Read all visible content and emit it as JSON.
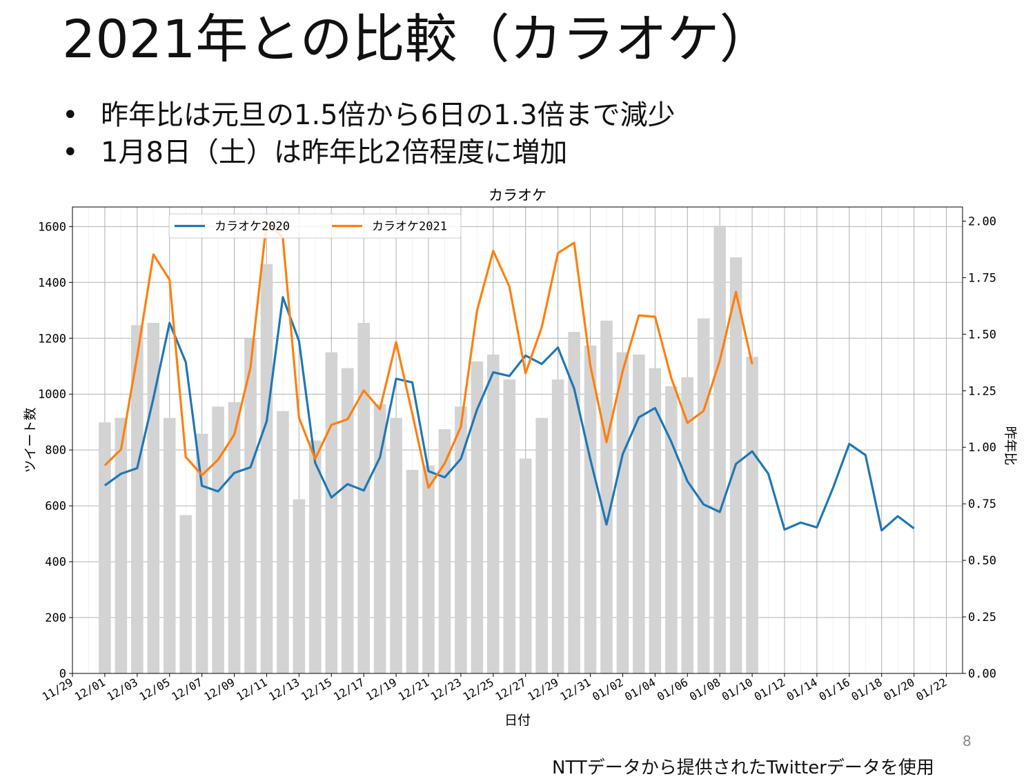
{
  "slide": {
    "title": "2021年との比較（カラオケ）",
    "bullets": [
      "昨年比は元旦の1.5倍から6日の1.3倍まで減少",
      "1月8日（土）は昨年比2倍程度に増加"
    ],
    "bullet_symbol": "•",
    "page_number": "8",
    "footnote": "NTTデータから提供されたTwitterデータを使用"
  },
  "chart_data": {
    "type": "bar+line",
    "title": "カラオケ",
    "xlabel": "日付",
    "ylabel": "ツイート数",
    "y2label": "昨年比",
    "ylim": [
      0,
      1670
    ],
    "y2lim": [
      0,
      2.0625
    ],
    "x_range": [
      "11/29",
      "01/23"
    ],
    "xticks": [
      "11/29",
      "12/01",
      "12/03",
      "12/05",
      "12/07",
      "12/09",
      "12/11",
      "12/13",
      "12/15",
      "12/17",
      "12/19",
      "12/21",
      "12/23",
      "12/25",
      "12/27",
      "12/29",
      "12/31",
      "01/02",
      "01/04",
      "01/06",
      "01/08",
      "01/10",
      "01/12",
      "01/14",
      "01/16",
      "01/18",
      "01/20",
      "01/22"
    ],
    "yticks": [
      0,
      200,
      400,
      600,
      800,
      1000,
      1200,
      1400,
      1600
    ],
    "y2ticks": [
      "0.00",
      "0.25",
      "0.50",
      "0.75",
      "1.00",
      "1.25",
      "1.50",
      "1.75",
      "2.00"
    ],
    "grid": true,
    "legend_position": "top-left",
    "bars": {
      "name": "昨年比",
      "axis": "right",
      "color": "#d3d3d3",
      "x": [
        "12/01",
        "12/02",
        "12/03",
        "12/04",
        "12/05",
        "12/06",
        "12/07",
        "12/08",
        "12/09",
        "12/10",
        "12/11",
        "12/12",
        "12/13",
        "12/14",
        "12/15",
        "12/16",
        "12/17",
        "12/18",
        "12/19",
        "12/20",
        "12/21",
        "12/22",
        "12/23",
        "12/24",
        "12/25",
        "12/26",
        "12/27",
        "12/28",
        "12/29",
        "12/30",
        "12/31",
        "01/01",
        "01/02",
        "01/03",
        "01/04",
        "01/05",
        "01/06",
        "01/07",
        "01/08",
        "01/09",
        "01/10"
      ],
      "values": [
        1.11,
        1.13,
        1.54,
        1.55,
        1.13,
        0.7,
        1.06,
        1.18,
        1.2,
        1.48,
        1.81,
        1.16,
        0.77,
        1.03,
        1.42,
        1.35,
        1.55,
        1.19,
        1.13,
        0.9,
        0.92,
        1.08,
        1.18,
        1.38,
        1.41,
        1.3,
        0.95,
        1.13,
        1.3,
        1.51,
        1.45,
        1.56,
        1.42,
        1.41,
        1.35,
        1.27,
        1.31,
        1.57,
        1.98,
        1.84,
        1.4
      ]
    },
    "series": [
      {
        "name": "カラオケ2020",
        "axis": "left",
        "color": "#1f77b4",
        "x": [
          "12/01",
          "12/02",
          "12/03",
          "12/04",
          "12/05",
          "12/06",
          "12/07",
          "12/08",
          "12/09",
          "12/10",
          "12/11",
          "12/12",
          "12/13",
          "12/14",
          "12/15",
          "12/16",
          "12/17",
          "12/18",
          "12/19",
          "12/20",
          "12/21",
          "12/22",
          "12/23",
          "12/24",
          "12/25",
          "12/26",
          "12/27",
          "12/28",
          "12/29",
          "12/30",
          "12/31",
          "01/01",
          "01/02",
          "01/03",
          "01/04",
          "01/05",
          "01/06",
          "01/07",
          "01/08",
          "01/09",
          "01/10",
          "01/11",
          "01/12",
          "01/13",
          "01/14",
          "01/15",
          "01/16",
          "01/17",
          "01/18",
          "01/19",
          "01/20"
        ],
        "values": [
          673,
          715,
          735,
          985,
          1255,
          1115,
          672,
          652,
          718,
          738,
          903,
          1347,
          1190,
          754,
          630,
          678,
          655,
          773,
          1055,
          1042,
          724,
          702,
          768,
          945,
          1078,
          1065,
          1138,
          1108,
          1167,
          1020,
          767,
          533,
          785,
          917,
          950,
          830,
          688,
          605,
          578,
          750,
          795,
          715,
          515,
          540,
          523,
          665,
          822,
          782,
          512,
          563,
          519
        ]
      },
      {
        "name": "カラオケ2021",
        "axis": "left",
        "color": "#ff7f0e",
        "x": [
          "12/01",
          "12/02",
          "12/03",
          "12/04",
          "12/05",
          "12/06",
          "12/07",
          "12/08",
          "12/09",
          "12/10",
          "12/11",
          "12/12",
          "12/13",
          "12/14",
          "12/15",
          "12/16",
          "12/17",
          "12/18",
          "12/19",
          "12/20",
          "12/21",
          "12/22",
          "12/23",
          "12/24",
          "12/25",
          "12/26",
          "12/27",
          "12/28",
          "12/29",
          "12/30",
          "12/31",
          "01/01",
          "01/02",
          "01/03",
          "01/04",
          "01/05",
          "01/06",
          "01/07",
          "01/08",
          "01/09",
          "01/10"
        ],
        "values": [
          745,
          802,
          1135,
          1500,
          1410,
          775,
          710,
          765,
          855,
          1095,
          1620,
          1560,
          915,
          768,
          890,
          910,
          1013,
          946,
          1186,
          930,
          665,
          752,
          883,
          1300,
          1513,
          1385,
          1075,
          1240,
          1505,
          1542,
          1103,
          828,
          1083,
          1282,
          1277,
          1058,
          897,
          940,
          1120,
          1366,
          1107
        ]
      }
    ]
  }
}
